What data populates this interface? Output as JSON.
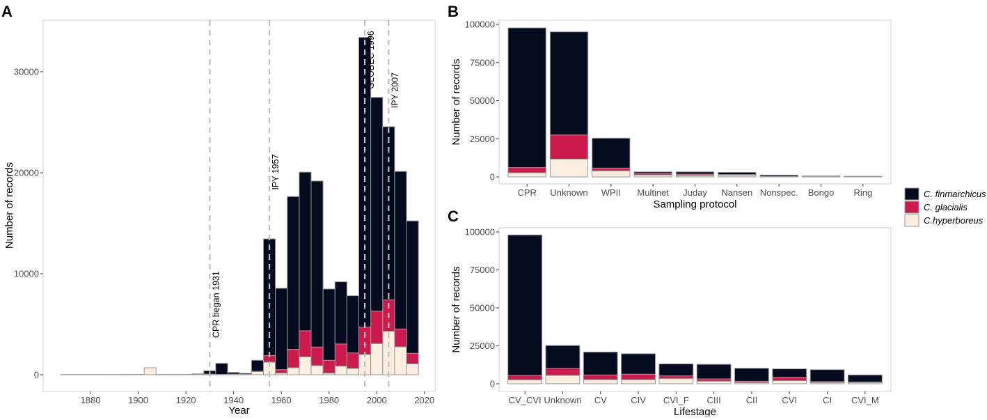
{
  "chart_data": [
    {
      "panel": "A",
      "type": "bar",
      "stacked": true,
      "xlabel": "Year",
      "ylabel": "Number of records",
      "xlim": [
        1860,
        2024
      ],
      "ylim": [
        0,
        35000
      ],
      "xticks": [
        1880,
        1900,
        1920,
        1940,
        1960,
        1980,
        2000,
        2020
      ],
      "yticks": [
        0,
        10000,
        20000,
        30000
      ],
      "bin_width": 5,
      "x": [
        1870,
        1875,
        1880,
        1885,
        1890,
        1895,
        1900,
        1905,
        1910,
        1915,
        1920,
        1925,
        1930,
        1935,
        1940,
        1945,
        1950,
        1955,
        1960,
        1965,
        1970,
        1975,
        1980,
        1985,
        1990,
        1995,
        2000,
        2005,
        2010,
        2015
      ],
      "series": [
        {
          "name": "C.hyperboreus",
          "values": [
            10,
            10,
            10,
            10,
            10,
            20,
            30,
            690,
            20,
            20,
            30,
            60,
            60,
            30,
            40,
            20,
            320,
            1240,
            160,
            690,
            1770,
            900,
            160,
            850,
            620,
            2000,
            3080,
            4300,
            2760,
            1080
          ]
        },
        {
          "name": "C. glacialis",
          "values": [
            0,
            0,
            0,
            0,
            0,
            0,
            0,
            0,
            0,
            0,
            0,
            0,
            0,
            0,
            20,
            20,
            20,
            650,
            340,
            1820,
            2580,
            1840,
            1270,
            2190,
            1540,
            2720,
            3220,
            3110,
            1770,
            1040
          ]
        },
        {
          "name": "C. finmarchicus",
          "values": [
            0,
            0,
            0,
            0,
            0,
            0,
            0,
            0,
            0,
            0,
            0,
            30,
            330,
            1100,
            170,
            100,
            1090,
            11560,
            8060,
            15130,
            15710,
            16440,
            7060,
            6160,
            5660,
            28680,
            21160,
            17150,
            15600,
            13110
          ]
        }
      ],
      "annotations": [
        {
          "x": 1930,
          "label": "CPR began 1931"
        },
        {
          "x": 1955,
          "label": "IPY 1957"
        },
        {
          "x": 1995,
          "label": "GLOBEC 1996"
        },
        {
          "x": 2005,
          "label": "IPY 2007"
        }
      ]
    },
    {
      "panel": "B",
      "type": "bar",
      "stacked": true,
      "xlabel": "Sampling protocol",
      "ylabel": "Number of records",
      "ylim": [
        0,
        104000
      ],
      "yticks": [
        0,
        25000,
        50000,
        75000,
        100000
      ],
      "categories": [
        "CPR",
        "Unknown",
        "WPII",
        "Multinet",
        "Juday",
        "Nansen",
        "Nonspec.",
        "Bongo",
        "Ring"
      ],
      "series": [
        {
          "name": "C.hyperboreus",
          "values": [
            2700,
            11700,
            4000,
            1300,
            1000,
            1200,
            200,
            200,
            50
          ]
        },
        {
          "name": "C. glacialis",
          "values": [
            3400,
            15800,
            1800,
            1000,
            800,
            300,
            100,
            100,
            50
          ]
        },
        {
          "name": "C. finmarchicus",
          "values": [
            91600,
            67600,
            19600,
            1000,
            1500,
            1500,
            900,
            400,
            300
          ]
        }
      ]
    },
    {
      "panel": "C",
      "type": "bar",
      "stacked": true,
      "xlabel": "Lifestage",
      "ylabel": "Number of records",
      "ylim": [
        0,
        104000
      ],
      "yticks": [
        0,
        25000,
        50000,
        75000,
        100000
      ],
      "categories": [
        "CV_CVI",
        "Unknown",
        "CV",
        "CIV",
        "CVI_F",
        "CIII",
        "CII",
        "CVI",
        "CI",
        "CVI_M"
      ],
      "series": [
        {
          "name": "C.hyperboreus",
          "values": [
            2600,
            5500,
            2700,
            2700,
            3400,
            1700,
            800,
            2000,
            800,
            800
          ]
        },
        {
          "name": "C. glacialis",
          "values": [
            2900,
            4600,
            3100,
            3600,
            1800,
            1500,
            900,
            2300,
            600,
            400
          ]
        },
        {
          "name": "C. finmarchicus",
          "values": [
            92500,
            15100,
            15100,
            13500,
            7900,
            9600,
            8500,
            5500,
            7900,
            4600
          ]
        }
      ]
    }
  ],
  "legend": [
    {
      "label": "C. finmarchicus",
      "color": "#050a1f"
    },
    {
      "label": "C. glacialis",
      "color": "#cc1a4f"
    },
    {
      "label": "C.hyperboreus",
      "color": "#fbeddf"
    }
  ],
  "panel_labels": [
    "A",
    "B",
    "C"
  ]
}
